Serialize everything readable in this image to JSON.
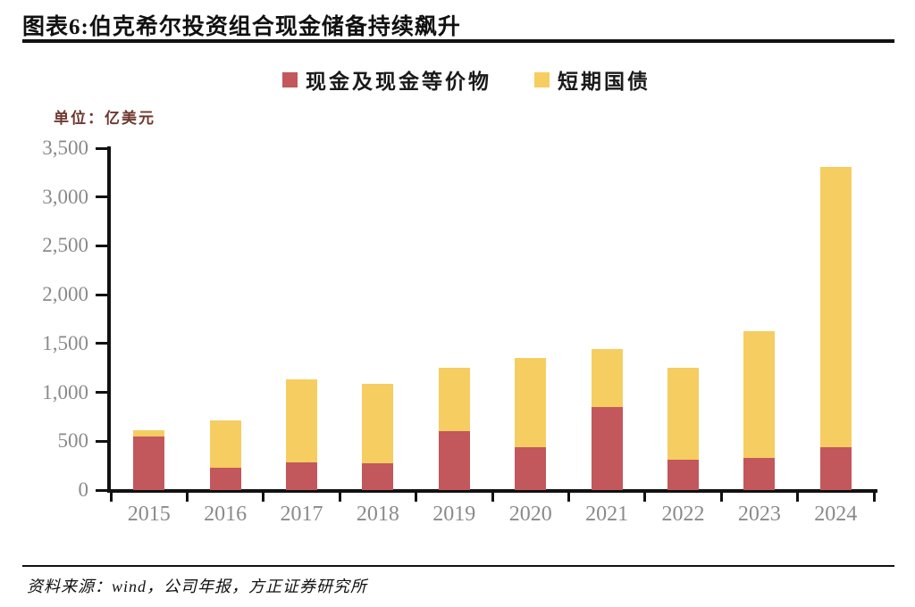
{
  "figure": {
    "title": "图表6:伯克希尔投资组合现金储备持续飙升",
    "unit_label": "单位：亿美元",
    "source": "资料来源：wind，公司年报，方正证券研究所"
  },
  "chart_data": {
    "type": "bar",
    "stacked": true,
    "title": "伯克希尔投资组合现金储备持续飙升",
    "unit": "亿美元",
    "categories": [
      "2015",
      "2016",
      "2017",
      "2018",
      "2019",
      "2020",
      "2021",
      "2022",
      "2023",
      "2024"
    ],
    "series": [
      {
        "name": "现金及现金等价物",
        "color": "#c2575c",
        "values": [
          550,
          230,
          280,
          270,
          600,
          440,
          850,
          310,
          330,
          440
        ]
      },
      {
        "name": "短期国债",
        "color": "#f6cd61",
        "values": [
          60,
          480,
          850,
          820,
          650,
          910,
          590,
          940,
          1300,
          2870
        ]
      }
    ],
    "totals": [
      610,
      710,
      1130,
      1090,
      1250,
      1350,
      1440,
      1250,
      1630,
      3310
    ],
    "ylim": [
      0,
      3500
    ],
    "ytick_step": 500,
    "ytick_labels": [
      "0",
      "500",
      "1,000",
      "1,500",
      "2,000",
      "2,500",
      "3,000",
      "3,500"
    ],
    "legend_position": "top-center",
    "grid": false,
    "axis_color": "#111111",
    "tick_label_color": "#8a8a8a"
  }
}
